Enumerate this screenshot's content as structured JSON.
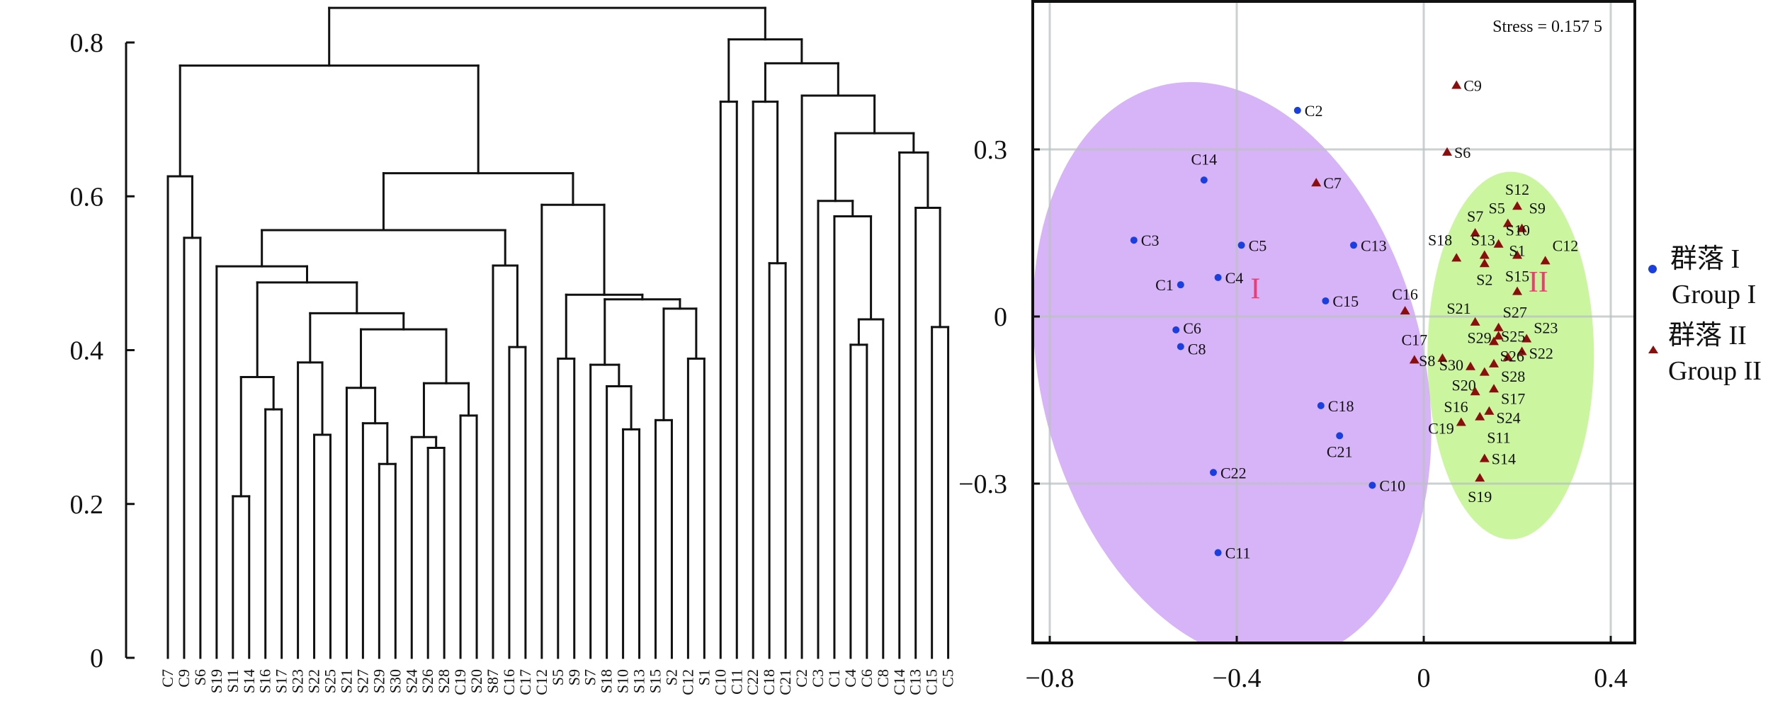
{
  "chart_data": [
    {
      "type": "dendrogram",
      "title": "",
      "ylabel": "",
      "ylim": [
        0,
        0.8
      ],
      "yticks": [
        "0",
        "0.2",
        "0.4",
        "0.6",
        "0.8"
      ],
      "ytick_values": [
        0,
        0.2,
        0.4,
        0.6,
        0.8
      ],
      "leaves": [
        "C7",
        "C9",
        "S6",
        "S19",
        "S11",
        "S14",
        "S16",
        "S17",
        "S23",
        "S22",
        "S25",
        "S21",
        "S27",
        "S29",
        "S30",
        "S24",
        "S26",
        "S28",
        "C19",
        "S20",
        "S87",
        "C16",
        "C17",
        "C12",
        "S5",
        "S9",
        "S7",
        "S18",
        "S10",
        "S13",
        "S15",
        "S2",
        "C12",
        "S1",
        "C10",
        "C11",
        "C22",
        "C18",
        "C21",
        "C2",
        "C3",
        "C1",
        "C4",
        "C6",
        "C8",
        "C14",
        "C13",
        "C15",
        "C5"
      ],
      "tree": {
        "h": 0.845,
        "c": [
          {
            "h": 0.77,
            "c": [
              {
                "h": 0.626,
                "c": [
                  0,
                  {
                    "h": 0.546,
                    "c": [
                      1,
                      2
                    ]
                  }
                ]
              },
              {
                "h": 0.63,
                "c": [
                  {
                    "h": 0.556,
                    "c": [
                      {
                        "h": 0.509,
                        "c": [
                          3,
                          {
                            "h": 0.488,
                            "c": [
                              {
                                "h": 0.365,
                                "c": [
                                  {
                                    "h": 0.21,
                                    "c": [
                                      4,
                                      5
                                    ]
                                  },
                                  {
                                    "h": 0.323,
                                    "c": [
                                      6,
                                      7
                                    ]
                                  }
                                ]
                              },
                              {
                                "h": 0.448,
                                "c": [
                                  {
                                    "h": 0.384,
                                    "c": [
                                      8,
                                      {
                                        "h": 0.29,
                                        "c": [
                                          9,
                                          10
                                        ]
                                      }
                                    ]
                                  },
                                  {
                                    "h": 0.427,
                                    "c": [
                                      {
                                        "h": 0.351,
                                        "c": [
                                          11,
                                          {
                                            "h": 0.305,
                                            "c": [
                                              12,
                                              {
                                                "h": 0.252,
                                                "c": [
                                                  13,
                                                  14
                                                ]
                                              }
                                            ]
                                          }
                                        ]
                                      },
                                      {
                                        "h": 0.357,
                                        "c": [
                                          {
                                            "h": 0.287,
                                            "c": [
                                              15,
                                              {
                                                "h": 0.273,
                                                "c": [
                                                  16,
                                                  17
                                                ]
                                              }
                                            ]
                                          },
                                          {
                                            "h": 0.315,
                                            "c": [
                                              18,
                                              19
                                            ]
                                          }
                                        ]
                                      }
                                    ]
                                  }
                                ]
                              }
                            ]
                          }
                        ]
                      },
                      {
                        "h": 0.51,
                        "c": [
                          20,
                          {
                            "h": 0.404,
                            "c": [
                              21,
                              22
                            ]
                          }
                        ]
                      }
                    ]
                  },
                  {
                    "h": 0.589,
                    "c": [
                      23,
                      {
                        "h": 0.472,
                        "c": [
                          {
                            "h": 0.389,
                            "c": [
                              24,
                              25
                            ]
                          },
                          {
                            "h": 0.466,
                            "c": [
                              {
                                "h": 0.381,
                                "c": [
                                  26,
                                  {
                                    "h": 0.353,
                                    "c": [
                                      27,
                                      {
                                        "h": 0.297,
                                        "c": [
                                          28,
                                          29
                                        ]
                                      }
                                    ]
                                  }
                                ]
                              },
                              {
                                "h": 0.454,
                                "c": [
                                  {
                                    "h": 0.309,
                                    "c": [
                                      30,
                                      31
                                    ]
                                  },
                                  {
                                    "h": 0.389,
                                    "c": [
                                      32,
                                      33
                                    ]
                                  }
                                ]
                              }
                            ]
                          }
                        ]
                      }
                    ]
                  }
                ]
              }
            ]
          },
          {
            "h": 0.804,
            "c": [
              {
                "h": 0.723,
                "c": [
                  34,
                  35
                ]
              },
              {
                "h": 0.773,
                "c": [
                  {
                    "h": 0.723,
                    "c": [
                      36,
                      {
                        "h": 0.513,
                        "c": [
                          37,
                          38
                        ]
                      }
                    ]
                  },
                  {
                    "h": 0.731,
                    "c": [
                      39,
                      {
                        "h": 0.682,
                        "c": [
                          {
                            "h": 0.594,
                            "c": [
                              40,
                              {
                                "h": 0.574,
                                "c": [
                                  41,
                                  {
                                    "h": 0.44,
                                    "c": [
                                      {
                                        "h": 0.407,
                                        "c": [
                                          42,
                                          43
                                        ]
                                      },
                                      44
                                    ]
                                  }
                                ]
                              }
                            ]
                          },
                          {
                            "h": 0.657,
                            "c": [
                              45,
                              {
                                "h": 0.585,
                                "c": [
                                  46,
                                  {
                                    "h": 0.43,
                                    "c": [
                                      47,
                                      48
                                    ]
                                  }
                                ]
                              }
                            ]
                          }
                        ]
                      }
                    ]
                  }
                ]
              }
            ]
          }
        ]
      }
    },
    {
      "type": "scatter",
      "title": "",
      "annotation": "Stress = 0.157 5",
      "xlim": [
        -0.85,
        0.45
      ],
      "ylim": [
        -0.6,
        0.55
      ],
      "xticks": [
        "−0.8",
        "−0.4",
        "0",
        "0.4"
      ],
      "xtick_values": [
        -0.8,
        -0.4,
        0,
        0.4
      ],
      "yticks": [
        "0.3",
        "0",
        "−0.3"
      ],
      "ytick_values": [
        0.3,
        0,
        -0.3
      ],
      "grid": true,
      "legend_position": "right",
      "groups": [
        {
          "name_cn": "群落 I",
          "name_en": "Group I",
          "marker": "circle",
          "color": "#1a3fe0",
          "ellipse_color": "#d7b3f7",
          "ellipse_label": "I",
          "ellipse": {
            "cx": -0.41,
            "cy": -0.1,
            "rx": 0.41,
            "ry": 0.53,
            "angle": -14
          }
        },
        {
          "name_cn": "群落 II",
          "name_en": "Group II",
          "marker": "triangle",
          "color": "#8b0e0e",
          "ellipse_color": "#c2f58e",
          "ellipse_label": "II",
          "ellipse": {
            "cx": 0.186,
            "cy": -0.07,
            "rx": 0.178,
            "ry": 0.33,
            "angle": 0
          }
        }
      ],
      "ellipse_label_color": "#ee3c72",
      "points": [
        {
          "label": "C2",
          "x": -0.27,
          "y": 0.37,
          "g": 0
        },
        {
          "label": "C14",
          "x": -0.47,
          "y": 0.245,
          "g": 0
        },
        {
          "label": "C3",
          "x": -0.62,
          "y": 0.137,
          "g": 0
        },
        {
          "label": "C5",
          "x": -0.39,
          "y": 0.128,
          "g": 0
        },
        {
          "label": "C13",
          "x": -0.15,
          "y": 0.128,
          "g": 0
        },
        {
          "label": "C1",
          "x": -0.52,
          "y": 0.057,
          "g": 0
        },
        {
          "label": "C4",
          "x": -0.44,
          "y": 0.07,
          "g": 0
        },
        {
          "label": "C15",
          "x": -0.21,
          "y": 0.028,
          "g": 0
        },
        {
          "label": "C6",
          "x": -0.53,
          "y": -0.024,
          "g": 0
        },
        {
          "label": "C8",
          "x": -0.52,
          "y": -0.054,
          "g": 0
        },
        {
          "label": "C18",
          "x": -0.22,
          "y": -0.16,
          "g": 0
        },
        {
          "label": "C21",
          "x": -0.18,
          "y": -0.214,
          "g": 0
        },
        {
          "label": "C22",
          "x": -0.45,
          "y": -0.28,
          "g": 0
        },
        {
          "label": "C10",
          "x": -0.11,
          "y": -0.303,
          "g": 0
        },
        {
          "label": "C11",
          "x": -0.44,
          "y": -0.424,
          "g": 0
        },
        {
          "label": "C9",
          "x": 0.07,
          "y": 0.415,
          "g": 1
        },
        {
          "label": "C7",
          "x": -0.23,
          "y": 0.24,
          "g": 1
        },
        {
          "label": "S6",
          "x": 0.05,
          "y": 0.295,
          "g": 1
        },
        {
          "label": "S12",
          "x": 0.2,
          "y": 0.198,
          "g": 1
        },
        {
          "label": "S5",
          "x": 0.18,
          "y": 0.167,
          "g": 1
        },
        {
          "label": "S9",
          "x": 0.21,
          "y": 0.158,
          "g": 1
        },
        {
          "label": "S7",
          "x": 0.11,
          "y": 0.15,
          "g": 1
        },
        {
          "label": "S10",
          "x": 0.16,
          "y": 0.13,
          "g": 1
        },
        {
          "label": "S18",
          "x": 0.07,
          "y": 0.105,
          "g": 1
        },
        {
          "label": "S13",
          "x": 0.13,
          "y": 0.11,
          "g": 1
        },
        {
          "label": "S1",
          "x": 0.2,
          "y": 0.11,
          "g": 1
        },
        {
          "label": "C12",
          "x": 0.26,
          "y": 0.1,
          "g": 1
        },
        {
          "label": "S2",
          "x": 0.13,
          "y": 0.095,
          "g": 1
        },
        {
          "label": "S15",
          "x": 0.2,
          "y": 0.045,
          "g": 1
        },
        {
          "label": "C16",
          "x": -0.04,
          "y": 0.01,
          "g": 1
        },
        {
          "label": "S21",
          "x": 0.11,
          "y": -0.01,
          "g": 1
        },
        {
          "label": "S27",
          "x": 0.16,
          "y": -0.02,
          "g": 1
        },
        {
          "label": "S23",
          "x": 0.22,
          "y": -0.04,
          "g": 1
        },
        {
          "label": "S29",
          "x": 0.16,
          "y": -0.035,
          "g": 1
        },
        {
          "label": "S25",
          "x": 0.15,
          "y": -0.045,
          "g": 1
        },
        {
          "label": "S22",
          "x": 0.21,
          "y": -0.063,
          "g": 1
        },
        {
          "label": "S26",
          "x": 0.18,
          "y": -0.073,
          "g": 1
        },
        {
          "label": "C17",
          "x": -0.02,
          "y": -0.078,
          "g": 1
        },
        {
          "label": "S8",
          "x": 0.04,
          "y": -0.075,
          "g": 1
        },
        {
          "label": "S30",
          "x": 0.1,
          "y": -0.09,
          "g": 1
        },
        {
          "label": "S28",
          "x": 0.15,
          "y": -0.085,
          "g": 1
        },
        {
          "label": "S20",
          "x": 0.13,
          "y": -0.1,
          "g": 1
        },
        {
          "label": "S17",
          "x": 0.15,
          "y": -0.13,
          "g": 1
        },
        {
          "label": "S16",
          "x": 0.11,
          "y": -0.135,
          "g": 1
        },
        {
          "label": "S24",
          "x": 0.14,
          "y": -0.17,
          "g": 1
        },
        {
          "label": "S11",
          "x": 0.12,
          "y": -0.18,
          "g": 1
        },
        {
          "label": "C19",
          "x": 0.08,
          "y": -0.19,
          "g": 1
        },
        {
          "label": "S14",
          "x": 0.13,
          "y": -0.255,
          "g": 1
        },
        {
          "label": "S19",
          "x": 0.12,
          "y": -0.29,
          "g": 1
        }
      ]
    }
  ]
}
